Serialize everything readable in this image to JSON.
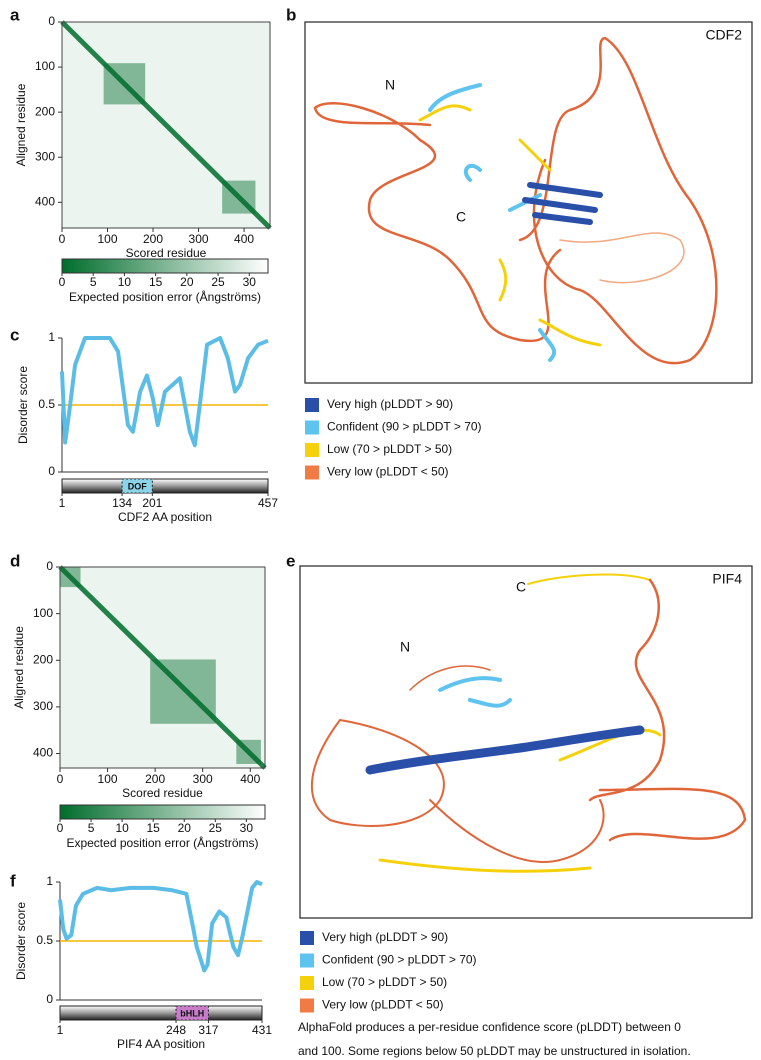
{
  "panel_labels": [
    "a",
    "b",
    "c",
    "d",
    "e",
    "f"
  ],
  "chart_data": [
    {
      "type": "heatmap",
      "xlabel": "Scored residue",
      "ylabel": "Aligned residue",
      "xlim": [
        0,
        457
      ],
      "ylim": [
        0,
        457
      ],
      "xticks": [
        0,
        100,
        200,
        300,
        400
      ],
      "yticks": [
        0,
        100,
        200,
        300,
        400
      ],
      "colors": [
        "#006d2c",
        "#ffffff"
      ],
      "colorbar": {
        "label": "Expected position error (Ångströms)",
        "lim": [
          0,
          33
        ],
        "ticks": [
          0,
          5,
          10,
          15,
          20,
          25,
          30
        ]
      }
    },
    {
      "type": "line",
      "ylabel": "Disorder score",
      "xlabel": "CDF2 AA position",
      "x": [
        1,
        8,
        19,
        30,
        52,
        107,
        125,
        147,
        158,
        174,
        189,
        202,
        213,
        229,
        262,
        273,
        284,
        295,
        306,
        322,
        351,
        368,
        384,
        395,
        413,
        435,
        457
      ],
      "values": [
        0.75,
        0.22,
        0.5,
        0.8,
        1.0,
        1.0,
        0.9,
        0.35,
        0.3,
        0.6,
        0.72,
        0.55,
        0.35,
        0.6,
        0.7,
        0.5,
        0.3,
        0.2,
        0.5,
        0.95,
        1.0,
        0.85,
        0.6,
        0.65,
        0.85,
        0.95,
        0.98
      ],
      "color": "#5bbde6",
      "threshold": 0.5,
      "threshold_color": "#f7b500",
      "xlim": [
        1,
        457
      ],
      "ylim": [
        0,
        1
      ],
      "xticks": [
        1,
        134,
        201,
        457
      ],
      "yticks": [
        0,
        0.5,
        1
      ],
      "domain": {
        "label": "DOF",
        "start": 134,
        "end": 201,
        "color": "#8dd3e8"
      }
    },
    {
      "type": "heatmap",
      "xlabel": "Scored residue",
      "ylabel": "Aligned residue",
      "xlim": [
        0,
        431
      ],
      "ylim": [
        0,
        431
      ],
      "xticks": [
        0,
        100,
        200,
        300,
        400
      ],
      "yticks": [
        0,
        100,
        200,
        300,
        400
      ],
      "colors": [
        "#006d2c",
        "#ffffff"
      ],
      "colorbar": {
        "label": "Expected position error (Ångströms)",
        "lim": [
          0,
          33
        ],
        "ticks": [
          0,
          5,
          10,
          15,
          20,
          25,
          30
        ]
      }
    },
    {
      "type": "line",
      "ylabel": "Disorder score",
      "xlabel": "PIF4 AA position",
      "x": [
        1,
        8,
        15,
        25,
        35,
        50,
        80,
        110,
        150,
        200,
        240,
        270,
        285,
        292,
        300,
        308,
        315,
        325,
        340,
        355,
        370,
        380,
        390,
        400,
        410,
        420,
        431
      ],
      "values": [
        0.85,
        0.6,
        0.52,
        0.55,
        0.8,
        0.9,
        0.95,
        0.93,
        0.95,
        0.95,
        0.93,
        0.9,
        0.6,
        0.45,
        0.35,
        0.25,
        0.3,
        0.65,
        0.75,
        0.7,
        0.45,
        0.38,
        0.55,
        0.75,
        0.95,
        1.0,
        0.98
      ],
      "color": "#5bbde6",
      "threshold": 0.5,
      "threshold_color": "#f7b500",
      "xlim": [
        1,
        431
      ],
      "ylim": [
        0,
        1
      ],
      "xticks": [
        1,
        248,
        317,
        431
      ],
      "yticks": [
        0,
        0.5,
        1
      ],
      "domain": {
        "label": "bHLH",
        "start": 248,
        "end": 317,
        "color": "#c77dc9"
      }
    }
  ],
  "structures": [
    {
      "name": "CDF2",
      "n_label": "N",
      "c_label": "C"
    },
    {
      "name": "PIF4",
      "n_label": "N",
      "c_label": "C"
    }
  ],
  "legend": [
    {
      "label": "Very high (pLDDT > 90)",
      "color": "#2a4fa8"
    },
    {
      "label": "Confident (90 > pLDDT > 70)",
      "color": "#5ec4ef"
    },
    {
      "label": "Low (70 > pLDDT > 50)",
      "color": "#f5d10b"
    },
    {
      "label": "Very low (pLDDT < 50)",
      "color": "#f07b45"
    }
  ],
  "caption": [
    "AlphaFold produces a per-residue confidence score (pLDDT) between 0",
    "and 100. Some regions below 50 pLDDT may be unstructured in isolation."
  ]
}
